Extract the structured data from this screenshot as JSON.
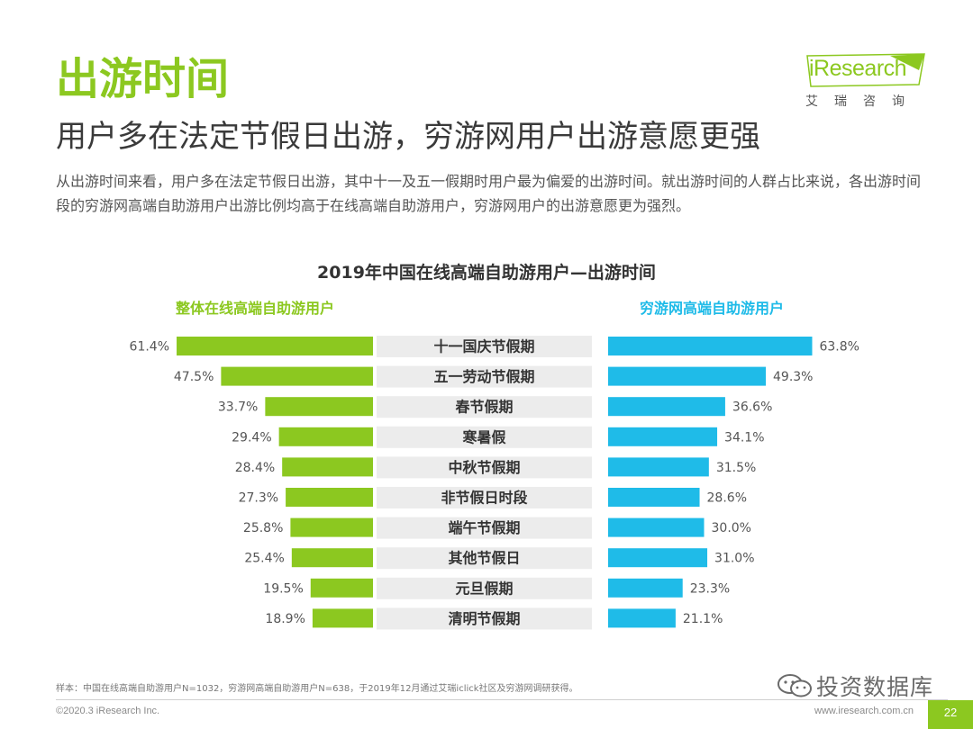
{
  "header": {
    "title": "出游时间",
    "subtitle": "用户多在法定节假日出游，穷游网用户出游意愿更强",
    "description": "从出游时间来看，用户多在法定节假日出游，其中十一及五一假期时用户最为偏爱的出游时间。就出游时间的人群占比来说，各出游时间段的穷游网高端自助游用户出游比例均高于在线高端自助游用户，穷游网用户的出游意愿更为强烈。"
  },
  "logo": {
    "name": "iResearch",
    "sub": "艾瑞咨询"
  },
  "colors": {
    "green": "#8cc820",
    "blue": "#1fbbe8",
    "label_bg": "#ececec"
  },
  "chart_data": {
    "type": "bar",
    "orientation": "horizontal-butterfly",
    "title": "2019年中国在线高端自助游用户—出游时间",
    "categories": [
      "十一国庆节假期",
      "五一劳动节假期",
      "春节假期",
      "寒暑假",
      "中秋节假期",
      "非节假日时段",
      "端午节假期",
      "其他节假日",
      "元旦假期",
      "清明节假期"
    ],
    "series": [
      {
        "name": "整体在线高端自助游用户",
        "side": "left",
        "color": "#8cc820",
        "values": [
          61.4,
          47.5,
          33.7,
          29.4,
          28.4,
          27.3,
          25.8,
          25.4,
          19.5,
          18.9
        ],
        "labels": [
          "61.4%",
          "47.5%",
          "33.7%",
          "29.4%",
          "28.4%",
          "27.3%",
          "25.8%",
          "25.4%",
          "19.5%",
          "18.9%"
        ]
      },
      {
        "name": "穷游网高端自助游用户",
        "side": "right",
        "color": "#1fbbe8",
        "values": [
          63.8,
          49.3,
          36.6,
          34.1,
          31.5,
          28.6,
          30.0,
          31.0,
          23.3,
          21.1
        ],
        "labels": [
          "63.8%",
          "49.3%",
          "36.6%",
          "34.1%",
          "31.5%",
          "28.6%",
          "30.0%",
          "31.0%",
          "23.3%",
          "21.1%"
        ]
      }
    ],
    "unit": "%"
  },
  "footer": {
    "note": "样本：中国在线高端自助游用户N=1032，穷游网高端自助游用户N=638，于2019年12月通过艾瑞iclick社区及穷游网调研获得。",
    "copyright": "©2020.3 iResearch Inc.",
    "website": "www.iresearch.com.cn",
    "page": "22",
    "watermark": "投资数据库"
  }
}
